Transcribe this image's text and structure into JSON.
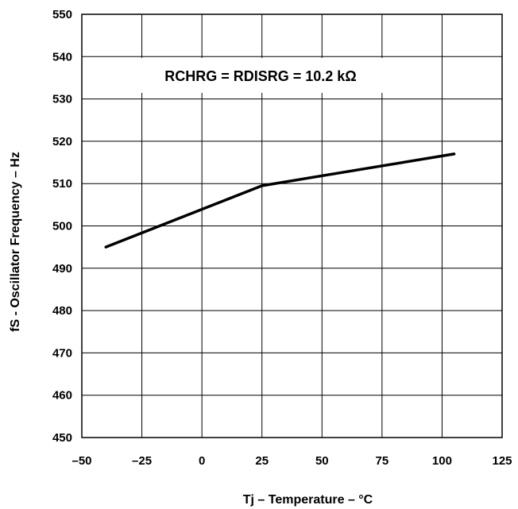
{
  "chart_data": {
    "type": "line",
    "xlabel": "Tj – Temperature – °C",
    "ylabel": "fS - Oscillator Frequency – Hz",
    "annotation": "RCHRG = RDISRG = 10.2 kΩ",
    "xlim": [
      -50,
      125
    ],
    "ylim": [
      450,
      550
    ],
    "xticks": [
      -50,
      -25,
      0,
      25,
      50,
      75,
      100,
      125
    ],
    "xtick_labels": [
      "–50",
      "–25",
      "0",
      "25",
      "50",
      "75",
      "100",
      "125"
    ],
    "yticks": [
      450,
      460,
      470,
      480,
      490,
      500,
      510,
      520,
      530,
      540,
      550
    ],
    "grid": true,
    "series": [
      {
        "x": [
          -40,
          25,
          105
        ],
        "y": [
          495,
          509.5,
          517
        ]
      }
    ]
  }
}
